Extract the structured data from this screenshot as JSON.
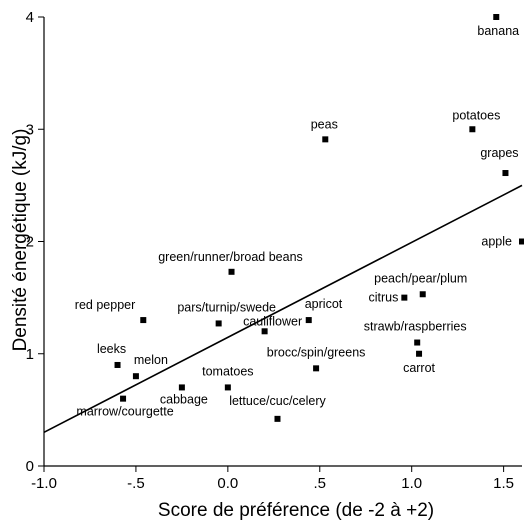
{
  "chart_data": {
    "type": "scatter",
    "title": "",
    "xlabel": "Score de préférence  (de -2 à +2)",
    "ylabel": "Densité énergétique  (kJ/g)",
    "xlim": [
      -1.0,
      1.6
    ],
    "ylim": [
      0,
      4
    ],
    "x_ticks": [
      -1.0,
      -0.5,
      0.0,
      0.5,
      1.0,
      1.5
    ],
    "x_tick_labels": [
      "-1.0",
      "-.5",
      "0.0",
      ".5",
      "1.0",
      "1.5"
    ],
    "y_ticks": [
      0,
      1,
      2,
      3,
      4
    ],
    "y_tick_labels": [
      "0",
      "1",
      "2",
      "3",
      "4"
    ],
    "grid": false,
    "marker_color": "#000000",
    "points": [
      {
        "label": "banana",
        "x": 1.46,
        "y": 4.0
      },
      {
        "label": "potatoes",
        "x": 1.33,
        "y": 3.0
      },
      {
        "label": "grapes",
        "x": 1.51,
        "y": 2.61
      },
      {
        "label": "peas",
        "x": 0.53,
        "y": 2.91
      },
      {
        "label": "apple",
        "x": 1.6,
        "y": 2.0
      },
      {
        "label": "green/runner/broad beans",
        "x": 0.02,
        "y": 1.73
      },
      {
        "label": "peach/pear/plum",
        "x": 1.06,
        "y": 1.53
      },
      {
        "label": "citrus",
        "x": 0.96,
        "y": 1.5
      },
      {
        "label": "red pepper",
        "x": -0.46,
        "y": 1.3
      },
      {
        "label": "pars/turnip/swede",
        "x": -0.05,
        "y": 1.27
      },
      {
        "label": "apricot",
        "x": 0.44,
        "y": 1.3
      },
      {
        "label": "cauliflower",
        "x": 0.2,
        "y": 1.2
      },
      {
        "label": "strawb/raspberries",
        "x": 1.03,
        "y": 1.1
      },
      {
        "label": "carrot",
        "x": 1.04,
        "y": 1.0
      },
      {
        "label": "brocc/spin/greens",
        "x": 0.48,
        "y": 0.87
      },
      {
        "label": "leeks",
        "x": -0.6,
        "y": 0.9
      },
      {
        "label": "melon",
        "x": -0.5,
        "y": 0.8
      },
      {
        "label": "tomatoes",
        "x": 0.0,
        "y": 0.7
      },
      {
        "label": "cabbage",
        "x": -0.25,
        "y": 0.7
      },
      {
        "label": "marrow/courgette",
        "x": -0.57,
        "y": 0.6
      },
      {
        "label": "lettuce/cuc/celery",
        "x": 0.27,
        "y": 0.42
      }
    ],
    "regression_line": {
      "x": [
        -1.0,
        1.6
      ],
      "y": [
        0.3,
        2.5
      ]
    }
  }
}
